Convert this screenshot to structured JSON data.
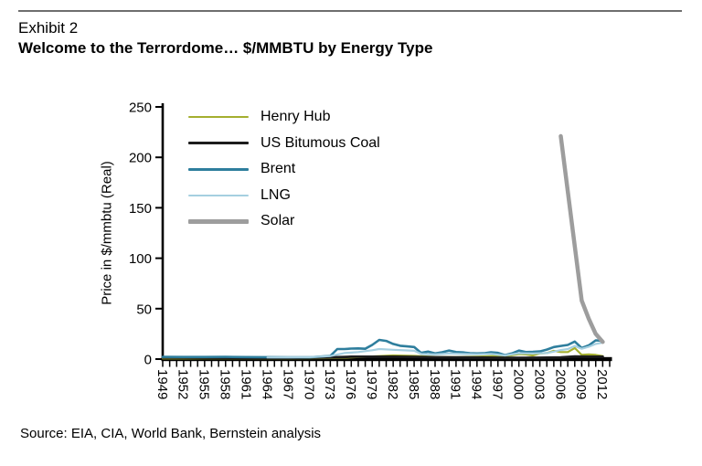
{
  "header": {
    "exhibit": "Exhibit 2",
    "title": "Welcome to the Terrordome… $/MMBTU by Energy Type"
  },
  "footer": {
    "source": "Source: EIA, CIA, World Bank, Bernstein analysis"
  },
  "colors": {
    "axis": "#000000",
    "rule": "#6e6e6e",
    "text": "#000000"
  },
  "chart_data": {
    "type": "line",
    "title": "Welcome to the Terrordome… $/MMBTU by Energy Type",
    "xlabel": "",
    "ylabel": "Price in $/mmbtu (Real)",
    "ylim": [
      0,
      250
    ],
    "yticks": [
      0,
      50,
      100,
      150,
      200,
      250
    ],
    "xlim": [
      1949,
      2013
    ],
    "xtick_labels": [
      "1949",
      "1952",
      "1955",
      "1958",
      "1961",
      "1964",
      "1967",
      "1970",
      "1973",
      "1976",
      "1979",
      "1982",
      "1985",
      "1988",
      "1991",
      "1994",
      "1997",
      "2000",
      "2003",
      "2006",
      "2009",
      "2012"
    ],
    "grid": false,
    "legend_position": "top-left-inside",
    "series": [
      {
        "name": "Henry Hub",
        "color": "#a4af2f",
        "width": 2.2,
        "points": [
          [
            1949,
            0.6
          ],
          [
            1952,
            0.6
          ],
          [
            1955,
            0.7
          ],
          [
            1958,
            0.7
          ],
          [
            1961,
            0.8
          ],
          [
            1964,
            0.8
          ],
          [
            1967,
            0.8
          ],
          [
            1970,
            0.9
          ],
          [
            1973,
            1.0
          ],
          [
            1976,
            1.6
          ],
          [
            1979,
            2.6
          ],
          [
            1982,
            3.6
          ],
          [
            1985,
            3.2
          ],
          [
            1988,
            2.2
          ],
          [
            1991,
            2.0
          ],
          [
            1994,
            2.4
          ],
          [
            1997,
            3.2
          ],
          [
            1998,
            2.6
          ],
          [
            2000,
            5.0
          ],
          [
            2001,
            4.6
          ],
          [
            2002,
            3.6
          ],
          [
            2003,
            5.6
          ],
          [
            2004,
            6.0
          ],
          [
            2005,
            8.2
          ],
          [
            2006,
            7.0
          ],
          [
            2007,
            7.0
          ],
          [
            2008,
            11.0
          ],
          [
            2009,
            4.2
          ],
          [
            2010,
            4.6
          ],
          [
            2011,
            4.2
          ],
          [
            2012,
            3.0
          ]
        ]
      },
      {
        "name": "US Bitumous Coal",
        "color": "#1c1c1c",
        "width": 2.8,
        "points": [
          [
            1949,
            1.6
          ],
          [
            1955,
            1.4
          ],
          [
            1961,
            1.2
          ],
          [
            1967,
            1.2
          ],
          [
            1973,
            1.6
          ],
          [
            1976,
            2.4
          ],
          [
            1979,
            2.4
          ],
          [
            1982,
            2.4
          ],
          [
            1985,
            2.2
          ],
          [
            1988,
            1.8
          ],
          [
            1991,
            1.7
          ],
          [
            1994,
            1.5
          ],
          [
            1997,
            1.4
          ],
          [
            2000,
            1.3
          ],
          [
            2003,
            1.4
          ],
          [
            2006,
            1.7
          ],
          [
            2008,
            2.6
          ],
          [
            2010,
            2.4
          ],
          [
            2012,
            2.4
          ]
        ]
      },
      {
        "name": "Brent",
        "color": "#2e7e9d",
        "width": 2.6,
        "points": [
          [
            1949,
            2.2
          ],
          [
            1952,
            2.1
          ],
          [
            1955,
            2.1
          ],
          [
            1958,
            2.2
          ],
          [
            1961,
            2.0
          ],
          [
            1964,
            1.9
          ],
          [
            1967,
            1.8
          ],
          [
            1970,
            1.7
          ],
          [
            1973,
            3.2
          ],
          [
            1974,
            10.0
          ],
          [
            1975,
            10.0
          ],
          [
            1976,
            10.4
          ],
          [
            1977,
            10.6
          ],
          [
            1978,
            10.2
          ],
          [
            1979,
            14.0
          ],
          [
            1980,
            19.0
          ],
          [
            1981,
            18.0
          ],
          [
            1982,
            15.0
          ],
          [
            1983,
            13.2
          ],
          [
            1984,
            12.6
          ],
          [
            1985,
            12.0
          ],
          [
            1986,
            6.2
          ],
          [
            1987,
            7.4
          ],
          [
            1988,
            5.6
          ],
          [
            1989,
            6.8
          ],
          [
            1990,
            8.4
          ],
          [
            1991,
            7.0
          ],
          [
            1992,
            6.6
          ],
          [
            1993,
            5.8
          ],
          [
            1994,
            5.6
          ],
          [
            1995,
            5.8
          ],
          [
            1996,
            6.8
          ],
          [
            1997,
            6.2
          ],
          [
            1998,
            4.0
          ],
          [
            1999,
            5.6
          ],
          [
            2000,
            8.4
          ],
          [
            2001,
            7.0
          ],
          [
            2002,
            7.2
          ],
          [
            2003,
            7.6
          ],
          [
            2004,
            9.4
          ],
          [
            2005,
            12.0
          ],
          [
            2006,
            13.0
          ],
          [
            2007,
            14.0
          ],
          [
            2008,
            17.4
          ],
          [
            2009,
            11.0
          ],
          [
            2010,
            13.6
          ],
          [
            2011,
            18.6
          ],
          [
            2012,
            18.2
          ]
        ]
      },
      {
        "name": "LNG",
        "color": "#a5cfe0",
        "width": 2.2,
        "points": [
          [
            1964,
            1.6
          ],
          [
            1967,
            1.7
          ],
          [
            1970,
            1.9
          ],
          [
            1973,
            3.0
          ],
          [
            1975,
            6.0
          ],
          [
            1977,
            7.0
          ],
          [
            1979,
            8.8
          ],
          [
            1980,
            10.0
          ],
          [
            1982,
            9.2
          ],
          [
            1984,
            8.6
          ],
          [
            1985,
            8.2
          ],
          [
            1986,
            5.2
          ],
          [
            1988,
            4.6
          ],
          [
            1990,
            5.6
          ],
          [
            1992,
            5.2
          ],
          [
            1994,
            4.8
          ],
          [
            1996,
            5.2
          ],
          [
            1998,
            3.6
          ],
          [
            2000,
            5.8
          ],
          [
            2002,
            5.6
          ],
          [
            2004,
            6.0
          ],
          [
            2005,
            7.4
          ],
          [
            2006,
            9.0
          ],
          [
            2007,
            10.0
          ],
          [
            2008,
            13.0
          ],
          [
            2009,
            10.2
          ],
          [
            2010,
            12.2
          ],
          [
            2011,
            15.0
          ],
          [
            2012,
            16.4
          ]
        ]
      },
      {
        "name": "Solar",
        "color": "#9d9d9d",
        "width": 4.5,
        "points": [
          [
            2006,
            221
          ],
          [
            2007,
            166
          ],
          [
            2008,
            112
          ],
          [
            2009,
            58
          ],
          [
            2010,
            40
          ],
          [
            2011,
            25
          ],
          [
            2012,
            17
          ]
        ]
      }
    ]
  }
}
